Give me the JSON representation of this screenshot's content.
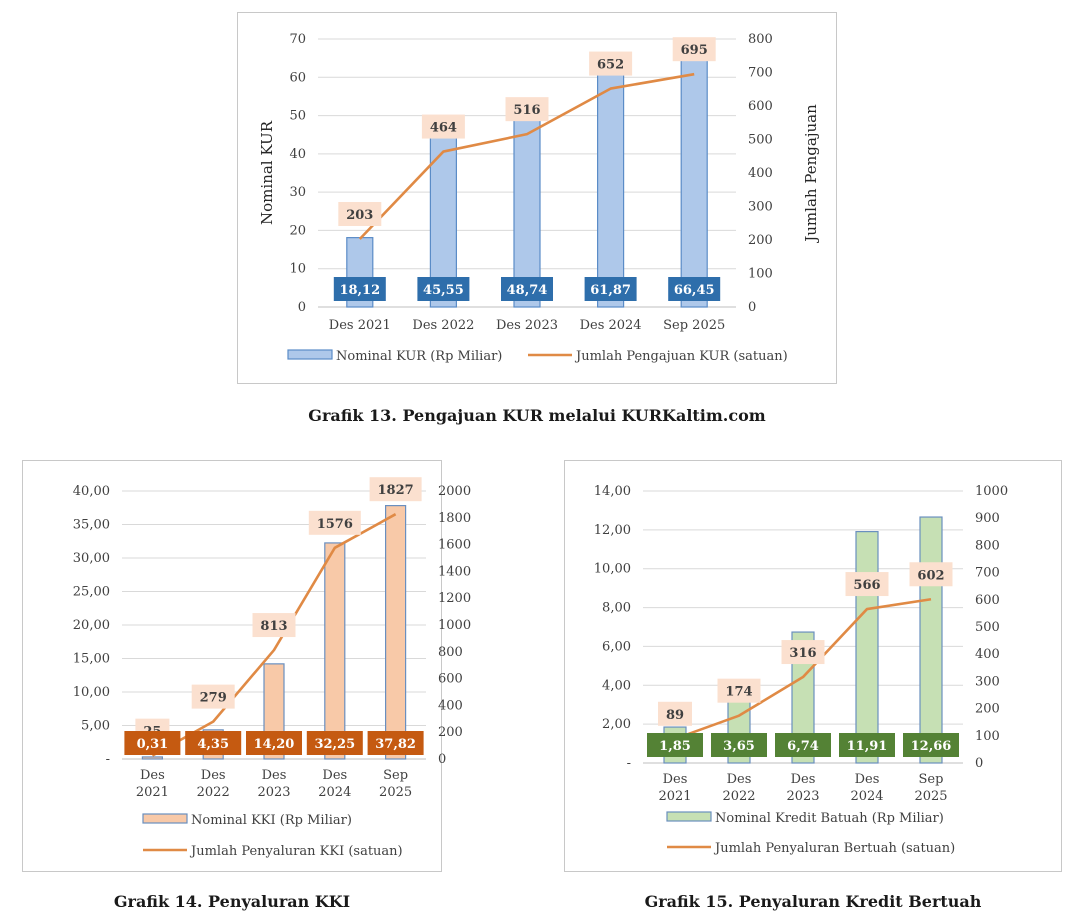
{
  "captions": {
    "g13": "Grafik 13. Pengajuan KUR melalui KURKaltim.com",
    "g14": "Grafik 14. Penyaluran KKI",
    "g15": "Grafik 15. Penyaluran Kredit Bertuah"
  },
  "chart_data": [
    {
      "type": "bar",
      "categories": [
        "Des 2021",
        "Des 2022",
        "Des 2023",
        "Des 2024",
        "Sep 2025"
      ],
      "bar_labels": [
        "18,12",
        "45,55",
        "48,74",
        "61,87",
        "66,45"
      ],
      "line_labels": [
        "203",
        "464",
        "516",
        "652",
        "695"
      ],
      "series": [
        {
          "name": "Nominal KUR (Rp Miliar)",
          "type": "bar",
          "axis": "left",
          "values": [
            18.12,
            45.55,
            48.74,
            61.87,
            66.45
          ]
        },
        {
          "name": "Jumlah Pengajuan KUR (satuan)",
          "type": "line",
          "axis": "right",
          "values": [
            203,
            464,
            516,
            652,
            695
          ]
        }
      ],
      "ylabel": "Nominal KUR",
      "y2label": "Jumlah Pengajuan",
      "ylim": [
        0,
        70
      ],
      "y2lim": [
        0,
        800
      ],
      "yticks": [
        "0",
        "10",
        "20",
        "30",
        "40",
        "50",
        "60",
        "70"
      ],
      "y2ticks": [
        "0",
        "100",
        "200",
        "300",
        "400",
        "500",
        "600",
        "700",
        "800"
      ],
      "colors": {
        "bar_fill": "#aec8ea",
        "bar_stroke": "#5b8cc7",
        "line": "#e08a45",
        "value_box": "#2e6eab",
        "line_box": "#fbe0cf"
      },
      "grid": true,
      "legend": "bottom"
    },
    {
      "type": "bar",
      "categories": [
        "Des 2021",
        "Des 2022",
        "Des 2023",
        "Des 2024",
        "Sep 2025"
      ],
      "bar_labels": [
        "0,31",
        "4,35",
        "14,20",
        "32,25",
        "37,82"
      ],
      "line_labels": [
        "25",
        "279",
        "813",
        "1576",
        "1827"
      ],
      "series": [
        {
          "name": "Nominal KKI (Rp Miliar)",
          "type": "bar",
          "axis": "left",
          "values": [
            0.31,
            4.35,
            14.2,
            32.25,
            37.82
          ]
        },
        {
          "name": "Jumlah Penyaluran KKI (satuan)",
          "type": "line",
          "axis": "right",
          "values": [
            25,
            279,
            813,
            1576,
            1827
          ]
        }
      ],
      "ylim": [
        0,
        40
      ],
      "y2lim": [
        0,
        2000
      ],
      "yticks": [
        "-",
        "5,00",
        "10,00",
        "15,00",
        "20,00",
        "25,00",
        "30,00",
        "35,00",
        "40,00"
      ],
      "y2ticks": [
        "0",
        "200",
        "400",
        "600",
        "800",
        "1000",
        "1200",
        "1400",
        "1600",
        "1800",
        "2000"
      ],
      "colors": {
        "bar_fill": "#f8c9a8",
        "bar_stroke": "#6a8fbf",
        "line": "#e08a45",
        "value_box": "#c55a11",
        "line_box": "#fbe0cf"
      },
      "grid": true,
      "legend": "bottom"
    },
    {
      "type": "bar",
      "categories": [
        "Des 2021",
        "Des 2022",
        "Des 2023",
        "Des 2024",
        "Sep 2025"
      ],
      "bar_labels": [
        "1,85",
        "3,65",
        "6,74",
        "11,91",
        "12,66"
      ],
      "line_labels": [
        "89",
        "174",
        "316",
        "566",
        "602"
      ],
      "series": [
        {
          "name": "Nominal Kredit Batuah (Rp Miliar)",
          "type": "bar",
          "axis": "left",
          "values": [
            1.85,
            3.65,
            6.74,
            11.91,
            12.66
          ]
        },
        {
          "name": "Jumlah Penyaluran Bertuah (satuan)",
          "type": "line",
          "axis": "right",
          "values": [
            89,
            174,
            316,
            566,
            602
          ]
        }
      ],
      "ylim": [
        0,
        14
      ],
      "y2lim": [
        0,
        1000
      ],
      "yticks": [
        "-",
        "2,00",
        "4,00",
        "6,00",
        "8,00",
        "10,00",
        "12,00",
        "14,00"
      ],
      "y2ticks": [
        "0",
        "100",
        "200",
        "300",
        "400",
        "500",
        "600",
        "700",
        "800",
        "900",
        "1000"
      ],
      "colors": {
        "bar_fill": "#c6e0b4",
        "bar_stroke": "#6a8fbf",
        "line": "#e08a45",
        "value_box": "#548235",
        "line_box": "#fbe0cf"
      },
      "grid": true,
      "legend": "bottom"
    }
  ]
}
